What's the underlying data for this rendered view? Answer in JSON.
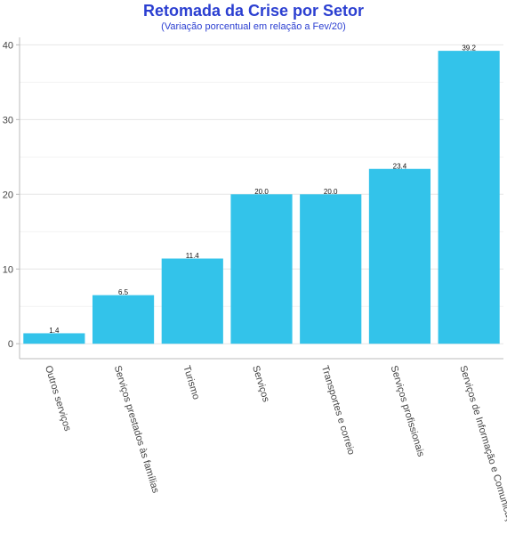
{
  "chart_data": {
    "type": "bar",
    "title": "Retomada da Crise por Setor",
    "subtitle": "(Variação porcentual em relação a Fev/20)",
    "categories": [
      "Outros serviços",
      "Serviços prestados às famílias",
      "Turismo",
      "Serviços",
      "Transportes e correio",
      "Serviços profissionais",
      "Serviços de Informação e Comunicação"
    ],
    "values": [
      1.4,
      6.5,
      11.4,
      20.0,
      20.0,
      23.4,
      39.2
    ],
    "value_labels": [
      "1.4",
      "6.5",
      "11.4",
      "20.0",
      "20.0",
      "23.4",
      "39.2"
    ],
    "ylim": [
      -2,
      41
    ],
    "yticks": [
      0,
      10,
      20,
      30,
      40
    ],
    "ytick_labels": [
      "0",
      "10",
      "20",
      "30",
      "40"
    ],
    "grid": true,
    "bar_color": "#33c3ea",
    "title_color": "#2b3fd1"
  }
}
